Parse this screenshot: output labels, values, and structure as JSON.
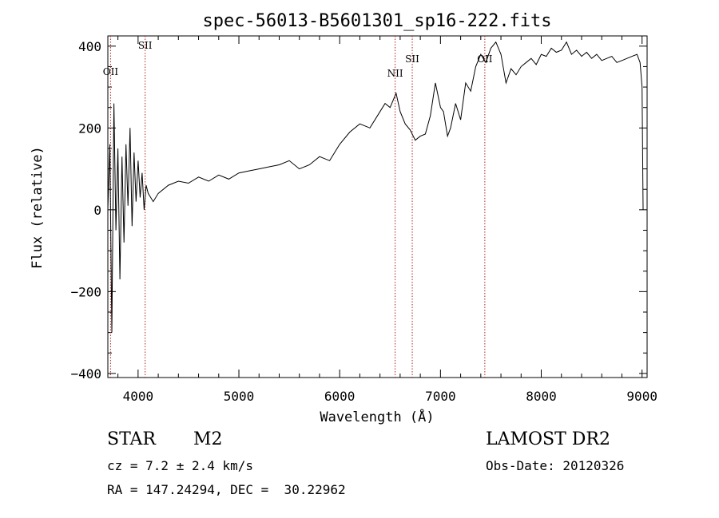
{
  "chart_data": {
    "type": "line",
    "title": "spec-56013-B5601301_sp16-222.fits",
    "xlabel": "Wavelength (Å)",
    "ylabel": "Flux (relative)",
    "xlim": [
      3700,
      9050
    ],
    "ylim": [
      -410,
      425
    ],
    "xticks": [
      4000,
      5000,
      6000,
      7000,
      8000,
      9000
    ],
    "yticks": [
      -400,
      -200,
      0,
      200,
      400
    ],
    "grid": false,
    "series": [
      {
        "x": [
          3700,
          3720,
          3740,
          3760,
          3780,
          3800,
          3820,
          3840,
          3860,
          3880,
          3900,
          3920,
          3940,
          3960,
          3980,
          4000,
          4020,
          4040,
          4060,
          4080,
          4100,
          4150,
          4200,
          4300,
          4400,
          4500,
          4600,
          4700,
          4800,
          4900,
          5000,
          5100,
          5200,
          5300,
          5400,
          5500,
          5600,
          5700,
          5800,
          5900,
          6000,
          6100,
          6200,
          6300,
          6400,
          6450,
          6500,
          6560,
          6600,
          6650,
          6700,
          6750,
          6800,
          6850,
          6900,
          6950,
          7000,
          7030,
          7070,
          7100,
          7150,
          7200,
          7250,
          7300,
          7350,
          7400,
          7450,
          7500,
          7550,
          7600,
          7650,
          7700,
          7750,
          7800,
          7850,
          7900,
          7950,
          8000,
          8050,
          8100,
          8150,
          8200,
          8250,
          8300,
          8350,
          8400,
          8450,
          8500,
          8550,
          8600,
          8650,
          8700,
          8750,
          8800,
          8850,
          8900,
          8950,
          8980,
          9000,
          9010
        ],
        "y": [
          0,
          160,
          -300,
          260,
          -50,
          150,
          -170,
          130,
          -80,
          160,
          10,
          200,
          -40,
          140,
          20,
          120,
          30,
          90,
          0,
          60,
          40,
          20,
          40,
          60,
          70,
          65,
          80,
          70,
          85,
          75,
          90,
          95,
          100,
          105,
          110,
          120,
          100,
          110,
          130,
          120,
          160,
          190,
          210,
          200,
          240,
          260,
          250,
          285,
          240,
          210,
          195,
          170,
          180,
          185,
          230,
          310,
          250,
          240,
          180,
          200,
          260,
          220,
          310,
          290,
          350,
          380,
          360,
          395,
          410,
          380,
          310,
          345,
          330,
          350,
          360,
          370,
          355,
          380,
          375,
          395,
          385,
          390,
          410,
          380,
          390,
          375,
          385,
          370,
          380,
          365,
          370,
          375,
          360,
          365,
          370,
          375,
          380,
          360,
          300,
          0
        ]
      }
    ],
    "line_annotations": [
      {
        "label": "OII",
        "x": 3727
      },
      {
        "label": "SII",
        "x": 4070
      },
      {
        "label": "NII",
        "x": 6550
      },
      {
        "label": "SII",
        "x": 6720
      },
      {
        "label": "OII",
        "x": 7440
      }
    ]
  },
  "info": {
    "object_class": "STAR",
    "object_subclass": "M2",
    "survey": "LAMOST DR2",
    "cz": "cz = 7.2 ± 2.4 km/s",
    "obs_date": "Obs-Date: 20120326",
    "radec": "RA = 147.24294, DEC =  30.22962"
  }
}
